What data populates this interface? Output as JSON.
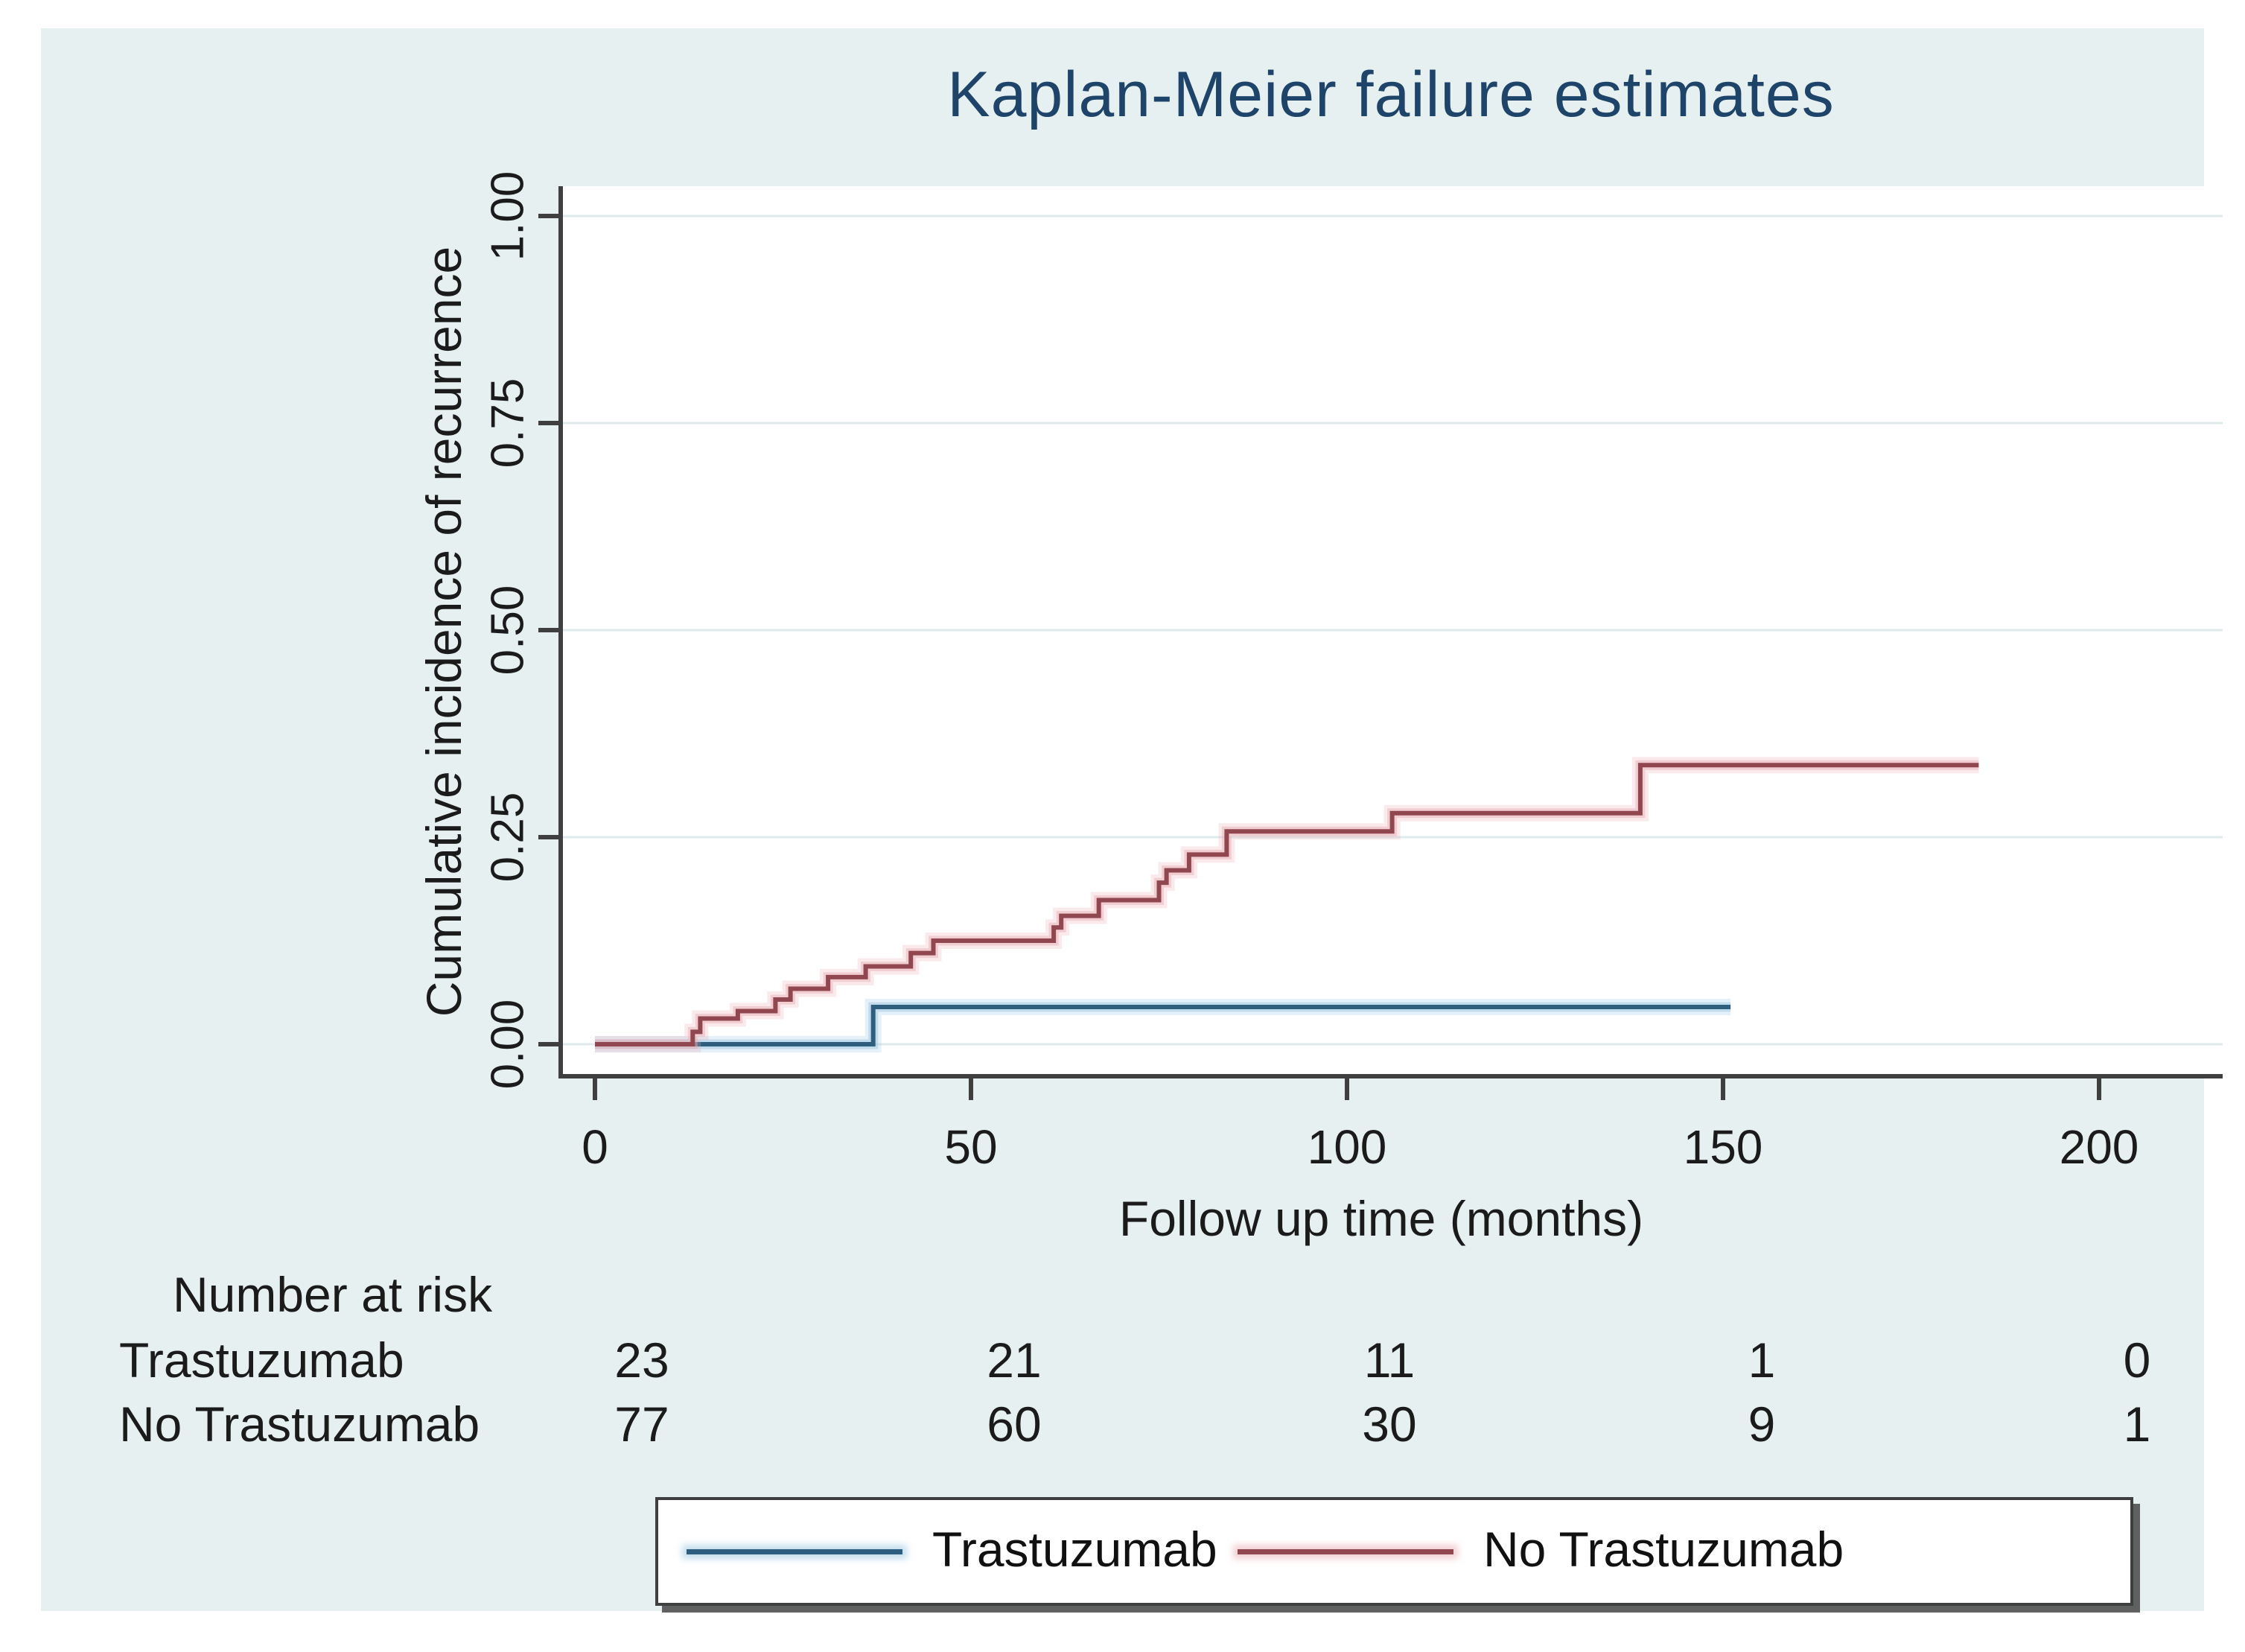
{
  "page": {
    "background": "#ffffff",
    "canvas_color": "#e7f0f1"
  },
  "chart_data": {
    "type": "line",
    "subtype": "kaplan-meier-step",
    "title": "Kaplan-Meier failure estimates",
    "title_color": "#1e4569",
    "xlabel": "Follow up time (months)",
    "ylabel": "Cumulative incidence of recurrence",
    "x_range": [
      0,
      200
    ],
    "y_range": [
      0,
      1
    ],
    "grid": true,
    "legend_position": "bottom",
    "x_ticks": [
      {
        "v": 0,
        "label": "0"
      },
      {
        "v": 50,
        "label": "50"
      },
      {
        "v": 100,
        "label": "100"
      },
      {
        "v": 150,
        "label": "150"
      },
      {
        "v": 200,
        "label": "200"
      }
    ],
    "y_ticks": [
      {
        "v": 0,
        "label": "0.00"
      },
      {
        "v": 0.25,
        "label": "0.25"
      },
      {
        "v": 0.5,
        "label": "0.50"
      },
      {
        "v": 0.75,
        "label": "0.75"
      },
      {
        "v": 1,
        "label": "1.00"
      }
    ],
    "series": [
      {
        "name": "Trastuzumab",
        "color": "#2e5f7f",
        "halo": "rgba(150,195,225,0.45)",
        "end_x": 151,
        "steps": [
          [
            0,
            0
          ],
          [
            37,
            0.045
          ]
        ]
      },
      {
        "name": "No Trastuzumab",
        "color": "#90474f",
        "halo": "rgba(233,170,177,0.45)",
        "end_x": 184,
        "steps": [
          [
            0,
            0
          ],
          [
            13,
            0.015
          ],
          [
            14,
            0.031
          ],
          [
            19,
            0.04
          ],
          [
            24,
            0.054
          ],
          [
            26,
            0.067
          ],
          [
            31,
            0.081
          ],
          [
            36,
            0.094
          ],
          [
            42,
            0.11
          ],
          [
            45,
            0.125
          ],
          [
            61,
            0.141
          ],
          [
            62,
            0.155
          ],
          [
            67,
            0.174
          ],
          [
            75,
            0.195
          ],
          [
            76,
            0.21
          ],
          [
            79,
            0.229
          ],
          [
            84,
            0.257
          ],
          [
            106,
            0.279
          ],
          [
            139,
            0.337
          ]
        ]
      }
    ]
  },
  "risk_table": {
    "header": "Number at risk",
    "rows": [
      {
        "label": "Trastuzumab",
        "values": [
          "23",
          "21",
          "11",
          "1",
          "0"
        ]
      },
      {
        "label": "No Trastuzumab",
        "values": [
          "77",
          "60",
          "30",
          "9",
          "1"
        ]
      }
    ]
  },
  "legend": {
    "items": [
      {
        "label": "Trastuzumab",
        "color": "#2e5f7f"
      },
      {
        "label": "No Trastuzumab",
        "color": "#90474f"
      }
    ]
  }
}
